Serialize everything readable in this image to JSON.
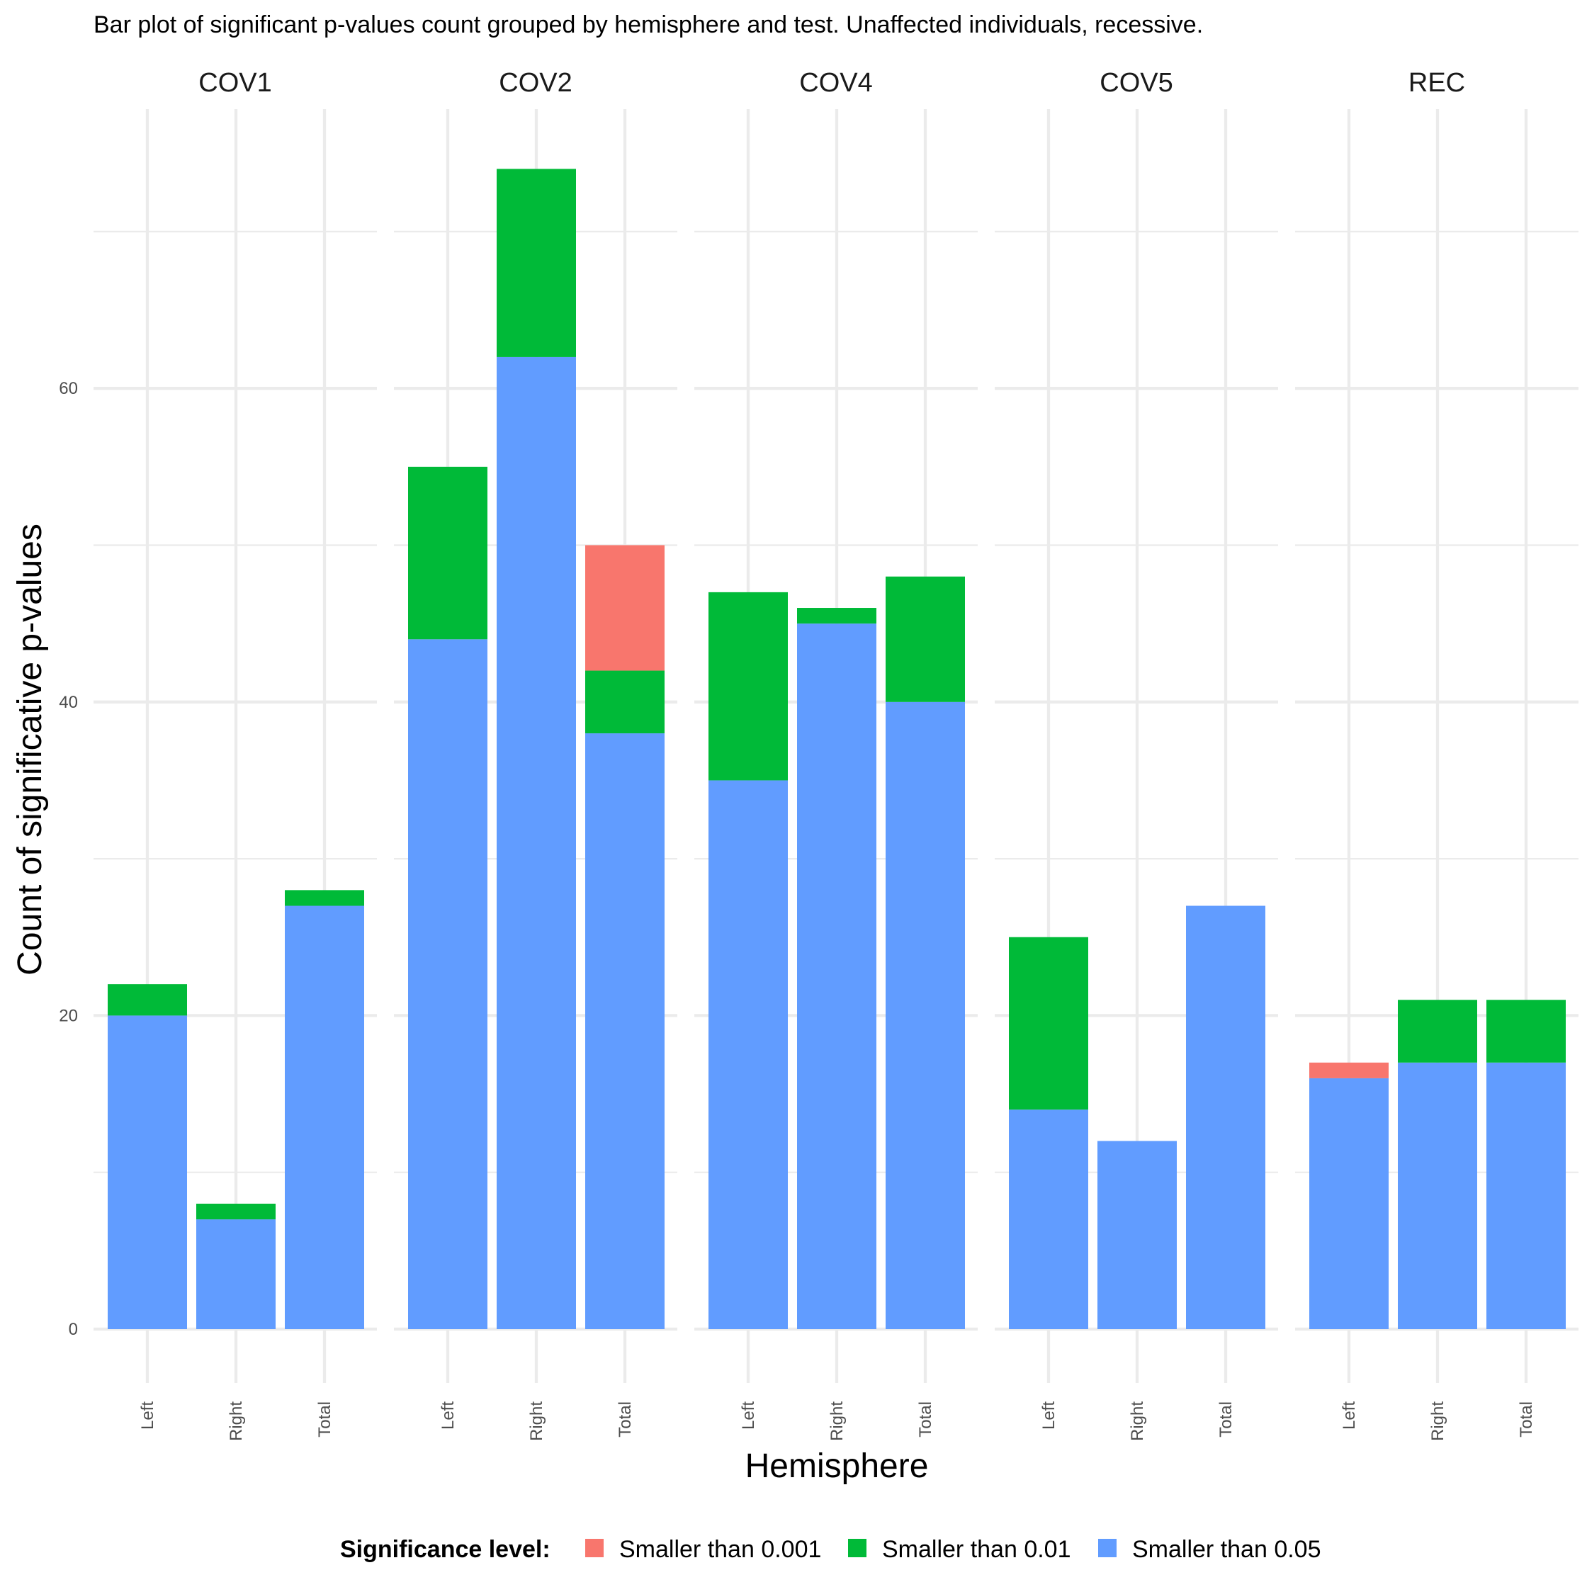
{
  "chart_data": {
    "type": "bar",
    "stacked": true,
    "title": "Bar plot of significant p-values count grouped by hemisphere and test. Unaffected individuals, recessive.",
    "xlabel": "Hemisphere",
    "ylabel": "Count of significative p-values",
    "ylim": [
      0,
      78
    ],
    "y_ticks": [
      0,
      20,
      40,
      60
    ],
    "grid": true,
    "legend": {
      "title": "Significance level:",
      "position": "bottom",
      "entries": [
        {
          "label": "Smaller than 0.001",
          "color": "#F8766D"
        },
        {
          "label": "Smaller than 0.01",
          "color": "#00BA38"
        },
        {
          "label": "Smaller than 0.05",
          "color": "#619CFF"
        }
      ]
    },
    "categories": [
      "Left",
      "Right",
      "Total"
    ],
    "facets": [
      {
        "name": "COV1",
        "series": [
          {
            "name": "Smaller than 0.05",
            "values": [
              20,
              7,
              27
            ]
          },
          {
            "name": "Smaller than 0.01",
            "values": [
              2,
              1,
              1
            ]
          },
          {
            "name": "Smaller than 0.001",
            "values": [
              0,
              0,
              0
            ]
          }
        ]
      },
      {
        "name": "COV2",
        "series": [
          {
            "name": "Smaller than 0.05",
            "values": [
              44,
              62,
              38
            ]
          },
          {
            "name": "Smaller than 0.01",
            "values": [
              11,
              12,
              4
            ]
          },
          {
            "name": "Smaller than 0.001",
            "values": [
              0,
              0,
              8
            ]
          }
        ]
      },
      {
        "name": "COV4",
        "series": [
          {
            "name": "Smaller than 0.05",
            "values": [
              35,
              45,
              40
            ]
          },
          {
            "name": "Smaller than 0.01",
            "values": [
              12,
              1,
              8
            ]
          },
          {
            "name": "Smaller than 0.001",
            "values": [
              0,
              0,
              0
            ]
          }
        ]
      },
      {
        "name": "COV5",
        "series": [
          {
            "name": "Smaller than 0.05",
            "values": [
              14,
              12,
              27
            ]
          },
          {
            "name": "Smaller than 0.01",
            "values": [
              11,
              0,
              0
            ]
          },
          {
            "name": "Smaller than 0.001",
            "values": [
              0,
              0,
              0
            ]
          }
        ]
      },
      {
        "name": "REC",
        "series": [
          {
            "name": "Smaller than 0.05",
            "values": [
              16,
              17,
              17
            ]
          },
          {
            "name": "Smaller than 0.01",
            "values": [
              0,
              4,
              4
            ]
          },
          {
            "name": "Smaller than 0.001",
            "values": [
              1,
              0,
              0
            ]
          }
        ]
      }
    ]
  }
}
